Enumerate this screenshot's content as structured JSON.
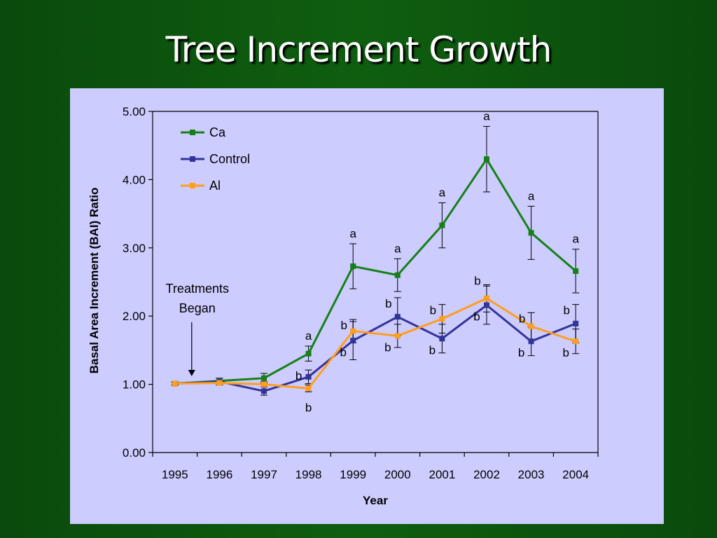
{
  "slide": {
    "title": "Tree Increment Growth"
  },
  "colors": {
    "Ca": "#168016",
    "Control": "#33339a",
    "Al": "#ff9e1e",
    "panel": "#ccccff",
    "background": "#0f5e10"
  },
  "chart_data": {
    "type": "line",
    "title": "",
    "xlabel": "Year",
    "ylabel": "Basal Area Increment (BAI) Ratio",
    "x": [
      "1995",
      "1996",
      "1997",
      "1998",
      "1999",
      "2000",
      "2001",
      "2002",
      "2003",
      "2004"
    ],
    "ylim": [
      0,
      5
    ],
    "y_ticks": [
      "0.00",
      "1.00",
      "2.00",
      "3.00",
      "4.00",
      "5.00"
    ],
    "grid": false,
    "legend_position": "top-left",
    "series": [
      {
        "name": "Ca",
        "values": [
          1.01,
          1.05,
          1.09,
          1.45,
          2.73,
          2.6,
          3.33,
          4.3,
          3.22,
          2.66
        ],
        "error": [
          0.02,
          0.04,
          0.07,
          0.11,
          0.33,
          0.24,
          0.33,
          0.48,
          0.39,
          0.32
        ],
        "sig": [
          "",
          "",
          "",
          "a",
          "a",
          "a",
          "a",
          "a",
          "a",
          "a"
        ]
      },
      {
        "name": "Control",
        "values": [
          1.01,
          1.04,
          0.9,
          1.11,
          1.64,
          1.99,
          1.67,
          2.16,
          1.63,
          1.89
        ],
        "error": [
          0.02,
          0.05,
          0.06,
          0.1,
          0.28,
          0.28,
          0.21,
          0.28,
          0.21,
          0.28
        ],
        "sig": [
          "",
          "",
          "",
          "b",
          "b",
          "b",
          "b",
          "b",
          "b",
          "b"
        ]
      },
      {
        "name": "Al",
        "values": [
          1.01,
          1.02,
          1.0,
          0.94,
          1.78,
          1.71,
          1.96,
          2.26,
          1.85,
          1.63
        ],
        "error": [
          0.02,
          0.03,
          0.04,
          0.05,
          0.17,
          0.17,
          0.21,
          0.2,
          0.2,
          0.18
        ],
        "sig": [
          "",
          "",
          "",
          "b",
          "b",
          "b",
          "b",
          "b",
          "b",
          "b"
        ]
      }
    ],
    "annotation": {
      "lines": [
        "Treatments",
        "Began"
      ],
      "x": "1995"
    }
  }
}
